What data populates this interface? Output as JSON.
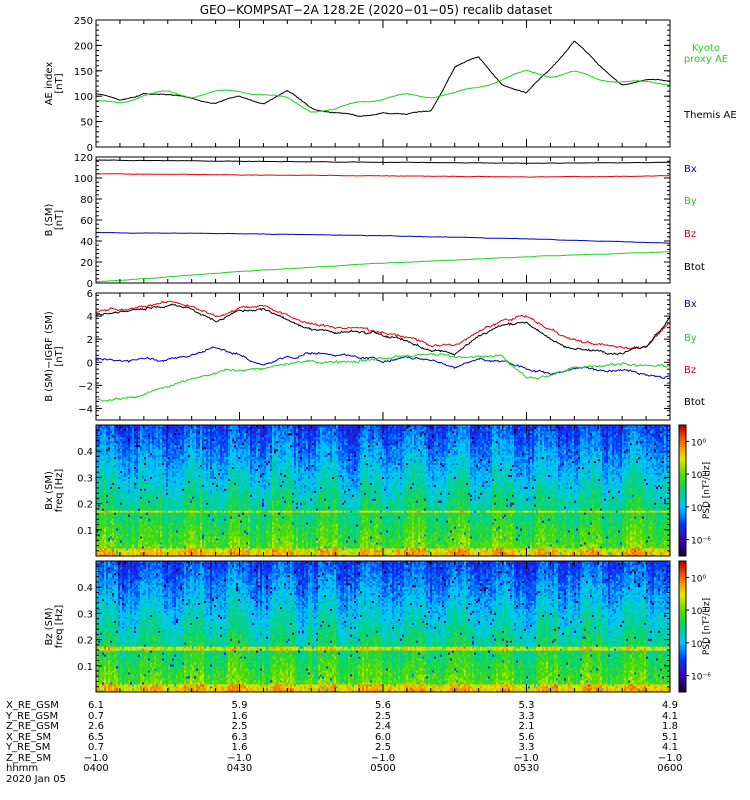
{
  "title": "GEO−KOMPSAT−2A 128.2E (2020−01−05) recalib dataset",
  "colors": {
    "black": "#000000",
    "red": "#e8000b",
    "green": "#1fd41f",
    "blue": "#0000c8"
  },
  "chart_data": [
    {
      "type": "line",
      "ylabel": [
        "AE index",
        "[nT]"
      ],
      "ylim": [
        0,
        250
      ],
      "yticks": [
        "0",
        "50",
        "100",
        "150",
        "200",
        "250"
      ],
      "x": [
        "0400",
        "0405",
        "0410",
        "0415",
        "0420",
        "0425",
        "0430",
        "0435",
        "0440",
        "0445",
        "0450",
        "0455",
        "0500",
        "0505",
        "0510",
        "0515",
        "0520",
        "0525",
        "0530",
        "0535",
        "0540",
        "0545",
        "0550",
        "0555",
        "0600"
      ],
      "series": [
        {
          "name": "Themis AE",
          "color": "#000000",
          "values": [
            105,
            90,
            108,
            100,
            98,
            86,
            98,
            88,
            108,
            78,
            68,
            58,
            70,
            62,
            72,
            158,
            175,
            125,
            104,
            155,
            210,
            160,
            125,
            130,
            130
          ]
        },
        {
          "name": "Kyoto proxy AE",
          "color": "#1fd41f",
          "name_lines": [
            "Kyoto",
            "proxy AE"
          ],
          "values": [
            88,
            88,
            102,
            108,
            100,
            108,
            110,
            104,
            95,
            72,
            72,
            90,
            95,
            102,
            100,
            105,
            118,
            134,
            148,
            140,
            148,
            133,
            130,
            126,
            125
          ]
        }
      ]
    },
    {
      "type": "line",
      "ylabel": [
        "B (SM)",
        "[nT]"
      ],
      "ylim": [
        0,
        120
      ],
      "yticks": [
        "0",
        "20",
        "40",
        "60",
        "80",
        "100",
        "120"
      ],
      "x": [
        "0400",
        "0430",
        "0500",
        "0530",
        "0600"
      ],
      "series": [
        {
          "name": "Bx",
          "color": "#0000c8",
          "values": [
            48,
            47,
            45,
            42,
            38
          ]
        },
        {
          "name": "By",
          "color": "#1fd41f",
          "values": [
            1,
            11,
            19,
            25,
            30
          ]
        },
        {
          "name": "Bz",
          "color": "#e8000b",
          "values": [
            104,
            103,
            102,
            101,
            102
          ]
        },
        {
          "name": "Btot",
          "color": "#000000",
          "values": [
            117,
            116,
            115,
            114,
            115
          ]
        }
      ]
    },
    {
      "type": "line",
      "ylabel": [
        "B (SM)−IGRF (SM)",
        "[nT]"
      ],
      "ylim": [
        -5,
        6
      ],
      "yticks": [
        "−4",
        "−2",
        "0",
        "2",
        "4",
        "6"
      ],
      "x": [
        "0400",
        "0405",
        "0410",
        "0415",
        "0420",
        "0425",
        "0430",
        "0435",
        "0440",
        "0445",
        "0450",
        "0455",
        "0500",
        "0505",
        "0510",
        "0515",
        "0520",
        "0525",
        "0530",
        "0535",
        "0540",
        "0545",
        "0550",
        "0555",
        "0600"
      ],
      "series": [
        {
          "name": "Bx",
          "color": "#0000c8",
          "values": [
            0.2,
            0.1,
            0.4,
            0.2,
            0.6,
            1.3,
            0.6,
            -0.3,
            0.4,
            0.8,
            0.7,
            0.5,
            0.1,
            0.4,
            0.2,
            -0.4,
            0.2,
            0.1,
            -0.5,
            -1.0,
            -0.5,
            -0.6,
            -0.5,
            -0.9,
            -1.2
          ]
        },
        {
          "name": "By",
          "color": "#1fd41f",
          "values": [
            -3.3,
            -3.3,
            -2.8,
            -2.2,
            -1.5,
            -1.0,
            -0.6,
            -0.5,
            -0.2,
            0,
            0.1,
            0.3,
            0.4,
            0.5,
            0.6,
            0.6,
            0.5,
            0.5,
            -1.4,
            -1.1,
            -0.5,
            -0.2,
            -0.1,
            -0.2,
            -0.3
          ]
        },
        {
          "name": "Bz",
          "color": "#e8000b",
          "values": [
            4.4,
            4.6,
            4.9,
            5.3,
            4.9,
            4.0,
            4.8,
            5.0,
            4.0,
            3.3,
            3.0,
            2.9,
            2.7,
            2.2,
            1.6,
            1.4,
            2.6,
            3.6,
            4.0,
            2.8,
            1.8,
            1.5,
            1.3,
            1.4,
            3.5
          ]
        },
        {
          "name": "Btot",
          "color": "#000000",
          "values": [
            4.0,
            4.3,
            4.7,
            5.0,
            4.6,
            3.6,
            4.4,
            4.6,
            3.7,
            2.8,
            2.6,
            2.6,
            2.4,
            1.8,
            1.1,
            0.8,
            2.3,
            3.3,
            3.5,
            2.0,
            1.1,
            1.0,
            0.8,
            1.3,
            3.8
          ]
        }
      ]
    },
    {
      "type": "heatmap",
      "ylabel": [
        "Bx (SM)",
        "freq [Hz]"
      ],
      "ylim": [
        0,
        0.5
      ],
      "yticks": [
        "0.1",
        "0.2",
        "0.3",
        "0.4"
      ],
      "colorbar_label": "PSD [nT²/Hz]",
      "colorbar_ticks": [
        "10⁰",
        "10⁻²",
        "10⁻⁴",
        "10⁻⁶"
      ],
      "zlim_log10": [
        -7,
        1
      ]
    },
    {
      "type": "heatmap",
      "ylabel": [
        "Bz (SM)",
        "freq [Hz]"
      ],
      "ylim": [
        0,
        0.5
      ],
      "yticks": [
        "0.1",
        "0.2",
        "0.3",
        "0.4"
      ],
      "colorbar_label": "PSD [nT²/Hz]",
      "colorbar_ticks": [
        "10⁰",
        "10⁻²",
        "10⁻⁴",
        "10⁻⁶"
      ],
      "zlim_log10": [
        -7,
        1
      ]
    }
  ],
  "ephemeris": {
    "labels": [
      "X_RE_GSM",
      "Y_RE_GSM",
      "Z_RE_GSM",
      "X_RE_SM",
      "Y_RE_SM",
      "Z_RE_SM",
      "hhmm",
      "2020 Jan 05"
    ],
    "columns": [
      [
        "6.1",
        "0.7",
        "2.6",
        "6.5",
        "0.7",
        "−1.0",
        "0400"
      ],
      [
        "5.9",
        "1.6",
        "2.5",
        "6.3",
        "1.6",
        "−1.0",
        "0430"
      ],
      [
        "5.6",
        "2.5",
        "2.4",
        "6.0",
        "2.5",
        "−1.0",
        "0500"
      ],
      [
        "5.3",
        "3.3",
        "2.1",
        "5.6",
        "3.3",
        "−1.0",
        "0530"
      ],
      [
        "4.9",
        "4.1",
        "1.8",
        "5.1",
        "4.1",
        "−1.0",
        "0600"
      ]
    ]
  }
}
